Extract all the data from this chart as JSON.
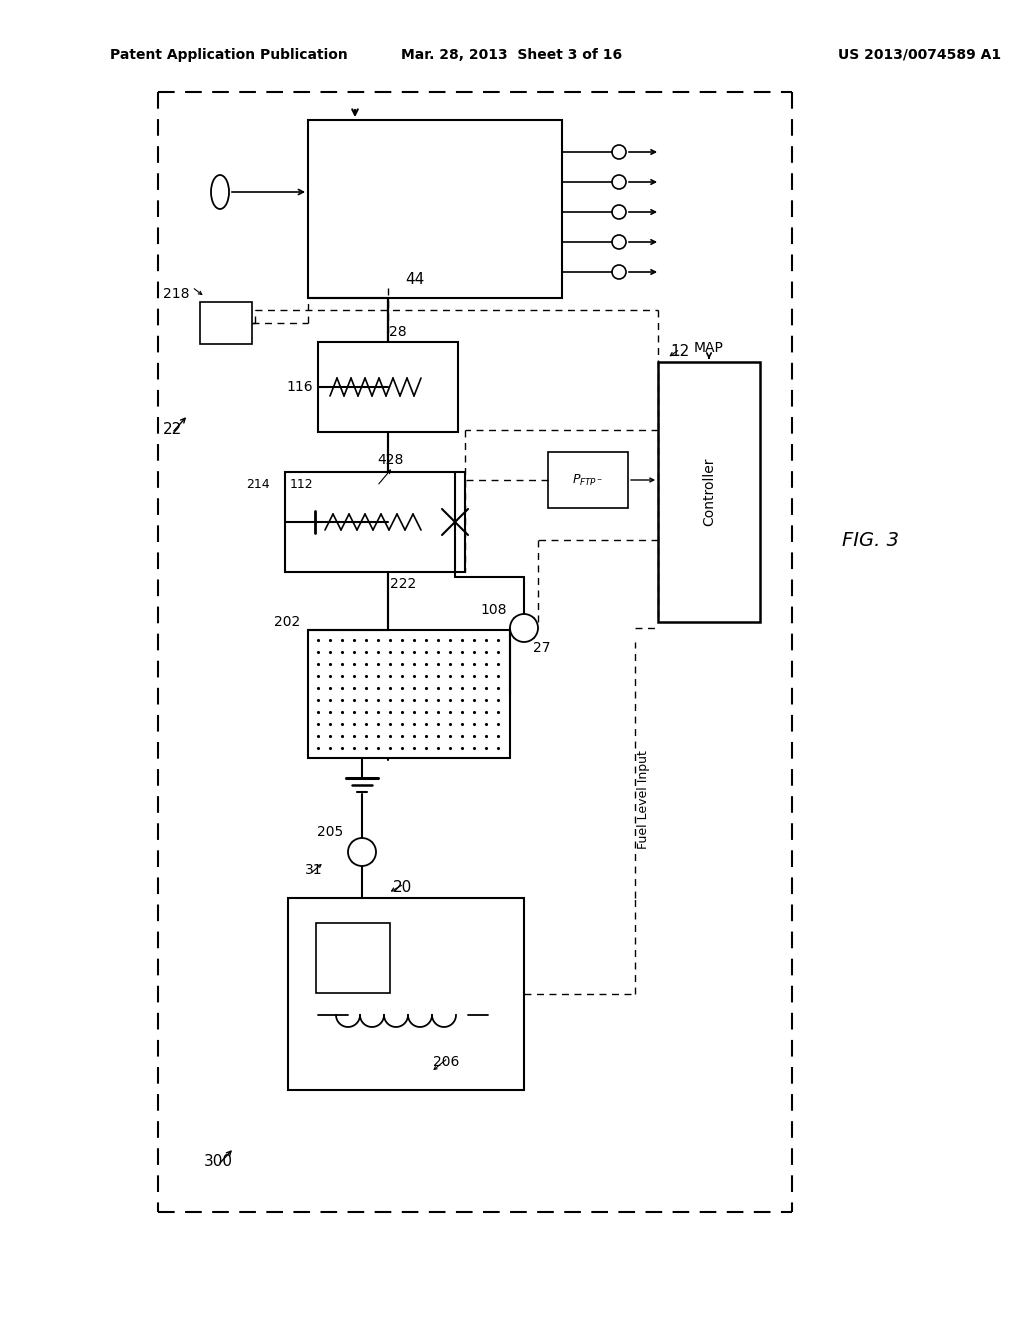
{
  "bg_color": "#ffffff",
  "header_left": "Patent Application Publication",
  "header_center": "Mar. 28, 2013  Sheet 3 of 16",
  "header_right": "US 2013/0074589 A1",
  "fig_label": "FIG. 3",
  "diagram_label": "300",
  "system_label": "22"
}
